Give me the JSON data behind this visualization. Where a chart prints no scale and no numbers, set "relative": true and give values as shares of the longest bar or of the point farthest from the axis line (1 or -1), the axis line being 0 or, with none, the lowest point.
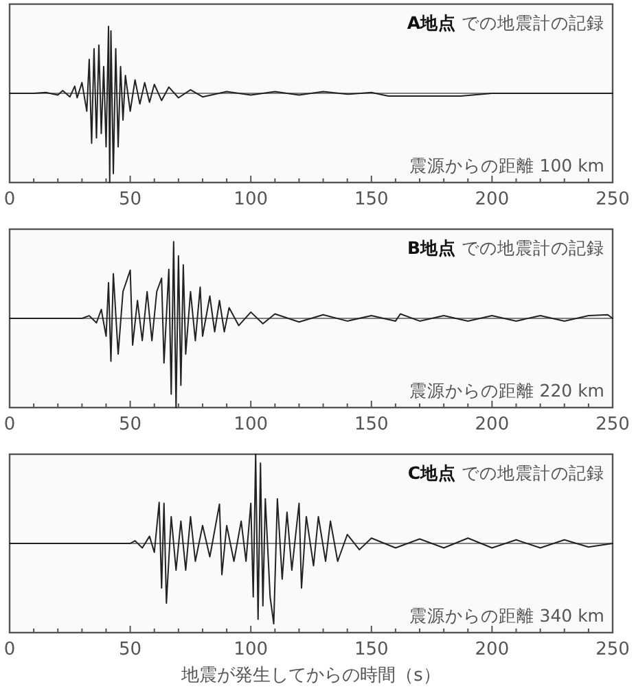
{
  "chart_data": [
    {
      "type": "line",
      "relative": true,
      "title": "A地点 での地震計の記録",
      "annotations": [
        "震源からの距離 100 km"
      ],
      "xlim": [
        0,
        250
      ],
      "xticks": [
        0,
        {
          "value": 10,
          "label": null
        },
        {
          "value": 20,
          "label": null
        },
        {
          "value": 30,
          "label": null
        },
        {
          "value": 40,
          "label": null
        },
        50,
        {
          "value": 60,
          "label": null
        },
        {
          "value": 70,
          "label": null
        },
        {
          "value": 80,
          "label": null
        },
        {
          "value": 90,
          "label": null
        },
        100,
        {
          "value": 110,
          "label": null
        },
        {
          "value": 120,
          "label": null
        },
        {
          "value": 130,
          "label": null
        },
        {
          "value": 140,
          "label": null
        },
        150,
        {
          "value": 160,
          "label": null
        },
        {
          "value": 170,
          "label": null
        },
        {
          "value": 180,
          "label": null
        },
        {
          "value": 190,
          "label": null
        },
        200,
        {
          "value": 210,
          "label": null
        },
        {
          "value": 220,
          "label": null
        },
        {
          "value": 230,
          "label": null
        },
        {
          "value": 240,
          "label": null
        },
        250
      ],
      "series": [
        {
          "color": "#222222",
          "x": [
            0,
            10,
            15,
            20,
            22,
            25,
            27,
            28,
            30,
            32,
            33,
            34,
            35,
            36,
            37,
            38,
            39,
            40,
            41,
            41.5,
            42,
            43,
            44,
            45,
            46,
            47,
            48,
            50,
            52,
            54,
            56,
            58,
            60,
            63,
            66,
            70,
            75,
            80,
            90,
            100,
            110,
            120,
            130,
            140,
            150,
            157,
            170,
            187,
            200,
            250
          ],
          "values": [
            0,
            0,
            0.01,
            -0.02,
            0.03,
            -0.04,
            0.08,
            -0.05,
            0.12,
            -0.2,
            0.38,
            -0.56,
            0.5,
            -0.5,
            0.54,
            -0.45,
            0.3,
            -0.6,
            0.75,
            -1,
            0.7,
            -0.9,
            0.5,
            -0.6,
            0.3,
            -0.3,
            0.2,
            -0.2,
            0.15,
            -0.12,
            0.12,
            -0.1,
            0.1,
            -0.08,
            0.07,
            -0.05,
            0.04,
            -0.04,
            0.02,
            -0.02,
            0.02,
            -0.02,
            0.02,
            -0.01,
            0.01,
            -0.03,
            -0.03,
            -0.03,
            0,
            0
          ]
        }
      ]
    },
    {
      "type": "line",
      "relative": true,
      "title": "B地点 での地震計の記録",
      "annotations": [
        "震源からの距離 220 km"
      ],
      "xlim": [
        0,
        250
      ],
      "xticks": [
        0,
        {
          "value": 10,
          "label": null
        },
        {
          "value": 20,
          "label": null
        },
        {
          "value": 30,
          "label": null
        },
        {
          "value": 40,
          "label": null
        },
        50,
        {
          "value": 60,
          "label": null
        },
        {
          "value": 70,
          "label": null
        },
        {
          "value": 80,
          "label": null
        },
        {
          "value": 90,
          "label": null
        },
        100,
        {
          "value": 110,
          "label": null
        },
        {
          "value": 120,
          "label": null
        },
        {
          "value": 130,
          "label": null
        },
        {
          "value": 140,
          "label": null
        },
        150,
        {
          "value": 160,
          "label": null
        },
        {
          "value": 170,
          "label": null
        },
        {
          "value": 180,
          "label": null
        },
        {
          "value": 190,
          "label": null
        },
        200,
        {
          "value": 210,
          "label": null
        },
        {
          "value": 220,
          "label": null
        },
        {
          "value": 230,
          "label": null
        },
        {
          "value": 240,
          "label": null
        },
        250
      ],
      "series": [
        {
          "color": "#222222",
          "x": [
            0,
            30,
            33,
            36,
            38,
            40,
            41,
            42,
            43,
            45,
            47,
            50,
            51,
            53,
            55,
            57,
            59,
            61,
            63,
            64,
            66,
            67,
            68,
            69,
            70,
            71,
            72,
            73,
            75,
            77,
            79,
            80,
            83,
            85,
            87,
            89,
            91,
            95,
            100,
            105,
            110,
            120,
            130,
            140,
            150,
            160,
            162,
            170,
            180,
            190,
            200,
            210,
            220,
            230,
            240,
            248,
            250
          ],
          "values": [
            0,
            0,
            0.03,
            -0.05,
            0.1,
            -0.2,
            0.4,
            -0.48,
            0.5,
            -0.4,
            0.3,
            0.54,
            -0.3,
            0.2,
            -0.25,
            0.3,
            -0.25,
            0.3,
            0.45,
            -0.5,
            0.55,
            -0.85,
            0.86,
            -1,
            0.7,
            -0.75,
            0.6,
            -0.4,
            0.3,
            -0.25,
            0.35,
            -0.2,
            0.25,
            -0.15,
            0.2,
            -0.15,
            0.12,
            -0.08,
            0.07,
            -0.06,
            0.05,
            -0.04,
            0.04,
            -0.03,
            0.03,
            -0.03,
            0.05,
            -0.03,
            0.03,
            -0.03,
            0.03,
            -0.03,
            0.03,
            -0.03,
            0.03,
            0.04,
            0
          ]
        }
      ]
    },
    {
      "type": "line",
      "relative": true,
      "title": "C地点 での地震計の記録",
      "annotations": [
        "震源からの距離 340 km"
      ],
      "xlabel": "地震が発生してからの時間（s）",
      "xlim": [
        0,
        250
      ],
      "xticks": [
        0,
        {
          "value": 10,
          "label": null
        },
        {
          "value": 20,
          "label": null
        },
        {
          "value": 30,
          "label": null
        },
        {
          "value": 40,
          "label": null
        },
        50,
        {
          "value": 60,
          "label": null
        },
        {
          "value": 70,
          "label": null
        },
        {
          "value": 80,
          "label": null
        },
        {
          "value": 90,
          "label": null
        },
        100,
        {
          "value": 110,
          "label": null
        },
        {
          "value": 120,
          "label": null
        },
        {
          "value": 130,
          "label": null
        },
        {
          "value": 140,
          "label": null
        },
        150,
        {
          "value": 160,
          "label": null
        },
        {
          "value": 170,
          "label": null
        },
        {
          "value": 180,
          "label": null
        },
        {
          "value": 190,
          "label": null
        },
        200,
        {
          "value": 210,
          "label": null
        },
        {
          "value": 220,
          "label": null
        },
        {
          "value": 230,
          "label": null
        },
        {
          "value": 240,
          "label": null
        },
        250
      ],
      "series": [
        {
          "color": "#222222",
          "x": [
            0,
            50,
            52,
            55,
            58,
            60,
            62,
            63,
            64,
            65,
            67,
            69,
            71,
            73,
            75,
            77,
            80,
            83,
            87,
            88,
            90,
            93,
            96,
            98,
            100,
            101,
            102,
            103,
            104,
            105,
            106,
            108,
            109.5,
            111,
            113,
            115,
            117,
            120,
            121,
            123,
            126,
            128,
            131,
            133,
            136,
            140,
            145,
            150,
            160,
            170,
            180,
            190,
            200,
            210,
            220,
            230,
            240,
            250
          ],
          "values": [
            0,
            0,
            0.03,
            -0.05,
            0.08,
            -0.1,
            0.46,
            -0.5,
            0.45,
            -0.67,
            0.3,
            -0.3,
            0.25,
            -0.3,
            0.3,
            -0.2,
            0.2,
            -0.15,
            0.44,
            -0.35,
            0.2,
            -0.2,
            0.25,
            -0.2,
            0.45,
            -0.6,
            1,
            -0.85,
            0.9,
            -0.7,
            0.5,
            -0.6,
            -0.9,
            0.5,
            -0.4,
            0.35,
            -0.3,
            0.45,
            -0.5,
            0.3,
            -0.25,
            0.3,
            -0.2,
            0.25,
            -0.2,
            0.1,
            -0.07,
            0.06,
            -0.05,
            0.05,
            -0.05,
            0.06,
            -0.05,
            0.04,
            -0.05,
            0.04,
            -0.04,
            0
          ]
        }
      ]
    }
  ]
}
